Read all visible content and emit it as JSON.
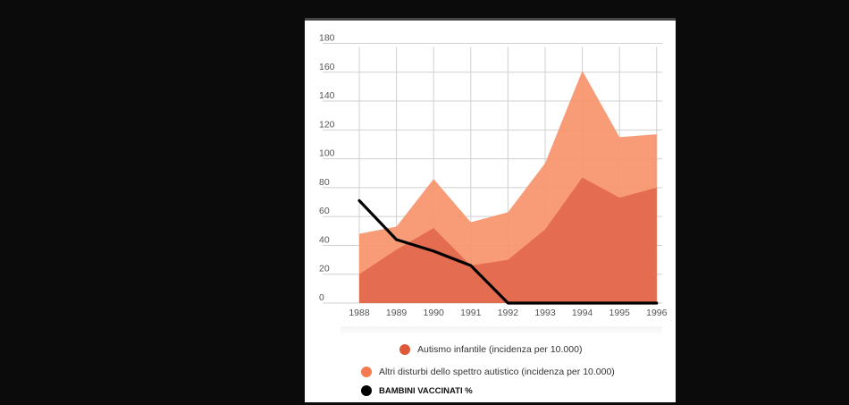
{
  "chart_data": {
    "type": "area",
    "x": [
      "1988",
      "1989",
      "1990",
      "1991",
      "1992",
      "1993",
      "1994",
      "1995",
      "1996"
    ],
    "yticks": [
      "0",
      "20",
      "40",
      "60",
      "80",
      "100",
      "120",
      "140",
      "160",
      "180"
    ],
    "ylim": [
      0,
      180
    ],
    "grid": true,
    "legend_position": "bottom",
    "series": [
      {
        "name": "Altri disturbi dello spettro autistico (incidenza per 10.000)",
        "kind": "area",
        "color": "#F7936B",
        "values": [
          48,
          53,
          86,
          56,
          63,
          97,
          161,
          115,
          117
        ]
      },
      {
        "name": "Autismo infantile (incidenza per 10.000)",
        "kind": "area",
        "color": "#E0654A",
        "values": [
          20,
          37,
          52,
          26,
          30,
          51,
          87,
          73,
          80
        ]
      },
      {
        "name": "BAMBINI VACCINATI  %",
        "kind": "line",
        "color": "#000000",
        "values": [
          71,
          44,
          36,
          26,
          0,
          0,
          0,
          0,
          0
        ]
      }
    ]
  },
  "legend": {
    "items": [
      {
        "label": "Autismo infantile (incidenza per 10.000)",
        "color": "#DC5A3A"
      },
      {
        "label": "Altri disturbi dello spettro autistico (incidenza per 10.000)",
        "color": "#F47A50"
      },
      {
        "label": "BAMBINI VACCINATI  %",
        "color": "#000000"
      }
    ]
  }
}
